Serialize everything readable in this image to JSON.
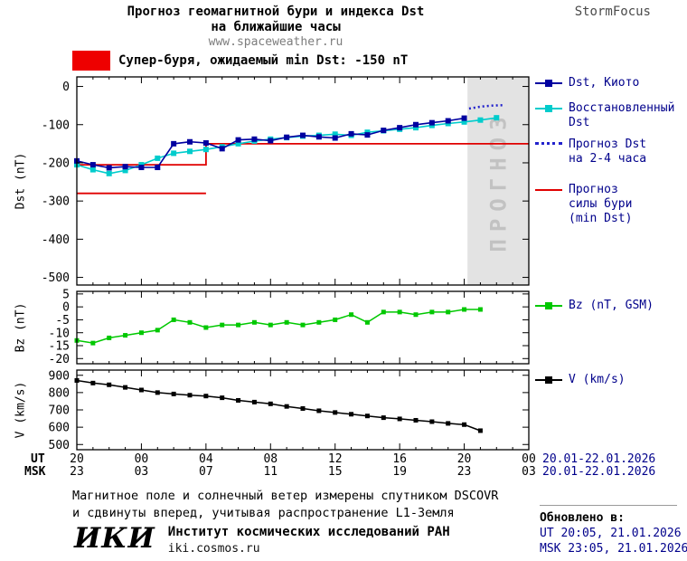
{
  "header": {
    "title_line1": "Прогноз геомагнитной бури и индекса Dst",
    "title_line2": "на ближайшие часы",
    "site": "www.spaceweather.ru",
    "brand": "StormFocus"
  },
  "alert": {
    "label": "Супер-буря, ожидаемый min Dst: -150 nT",
    "color": "#ee0000"
  },
  "legend": {
    "dst_kyoto": "Dst, Киото",
    "restored_l1": "Восстановленный",
    "restored_l2": "Dst",
    "forecast_l1": "Прогноз Dst",
    "forecast_l2": "на 2-4 часа",
    "storm_l1": "Прогноз",
    "storm_l2": "силы бури",
    "storm_l3": "(min Dst)",
    "bz": "Bz (nT, GSM)",
    "v": "V (km/s)"
  },
  "axes": {
    "ut_label": "UT",
    "msk_label": "MSK",
    "ut_ticks": [
      "20",
      "00",
      "04",
      "08",
      "12",
      "16",
      "20",
      "00"
    ],
    "msk_ticks": [
      "23",
      "03",
      "07",
      "11",
      "15",
      "19",
      "23",
      "03"
    ],
    "date_range_ut": "20.01-22.01.2026",
    "date_range_msk": "20.01-22.01.2026"
  },
  "footer": {
    "note_line1": "Магнитное поле и солнечный ветер измерены спутником DSCOVR",
    "note_line2": "и сдвинуты вперед, учитывая распространение L1-Земля",
    "updated_label": "Обновлено в:",
    "updated_ut": "UT  20:05, 21.01.2026",
    "updated_msk": "MSK 23:05, 21.01.2026",
    "logo": "ИКИ",
    "institute": "Институт космических исследований РАН",
    "iki_site": "iki.cosmos.ru"
  },
  "chart_data": [
    {
      "type": "line",
      "title": "Dst index and forecast",
      "ylabel": "Dst (nT)",
      "ylim": [
        -520,
        25
      ],
      "yticks": [
        0,
        -100,
        -200,
        -300,
        -400,
        -500
      ],
      "xlim": [
        0,
        28
      ],
      "xticks": [
        0,
        4,
        8,
        12,
        16,
        20,
        24,
        28
      ],
      "x_unit": "hours from 20:00 UT 20.01.2026",
      "forecast_band": [
        24.2,
        28
      ],
      "forecast_band_label": "ПРОГНОЗ",
      "series": [
        {
          "name": "Прогноз силы бури (min Dst)",
          "color": "#e00000",
          "width": 1.8,
          "x": [
            0,
            8
          ],
          "values": [
            -280,
            -280
          ]
        },
        {
          "name": "Прогноз силы бури (min Dst)",
          "color": "#e00000",
          "width": 1.8,
          "x": [
            0,
            8,
            8,
            28
          ],
          "values": [
            -205,
            -205,
            -150,
            -150
          ]
        },
        {
          "name": "Восстановленный Dst",
          "color": "#00cccc",
          "marker": true,
          "msize": 6,
          "width": 1.6,
          "x_start": 0,
          "x_step": 1,
          "values": [
            -205,
            -218,
            -228,
            -220,
            -205,
            -188,
            -175,
            -170,
            -165,
            -158,
            -150,
            -143,
            -138,
            -134,
            -130,
            -128,
            -125,
            -128,
            -120,
            -116,
            -112,
            -108,
            -102,
            -97,
            -93,
            -88,
            -82
          ]
        },
        {
          "name": "Dst, Киото",
          "color": "#0000a0",
          "marker": true,
          "msize": 6,
          "width": 1.6,
          "x_start": 0,
          "x_step": 1,
          "values": [
            -195,
            -205,
            -213,
            -210,
            -212,
            -212,
            -150,
            -145,
            -148,
            -163,
            -140,
            -138,
            -142,
            -133,
            -128,
            -132,
            -135,
            -124,
            -127,
            -115,
            -108,
            -100,
            -95,
            -90,
            -83
          ]
        },
        {
          "name": "Прогноз Dst на 2-4 часа",
          "color": "#2222cc",
          "width": 2.5,
          "dash": "2,3",
          "x": [
            24.3,
            25,
            25.7,
            26.5
          ],
          "values": [
            -58,
            -53,
            -50,
            -49
          ]
        }
      ]
    },
    {
      "type": "line",
      "title": "IMF Bz",
      "ylabel": "Bz (nT)",
      "ylim": [
        -22,
        6
      ],
      "yticks": [
        5,
        0,
        -5,
        -10,
        -15,
        -20
      ],
      "xlim": [
        0,
        28
      ],
      "xticks": [
        0,
        4,
        8,
        12,
        16,
        20,
        24,
        28
      ],
      "series": [
        {
          "name": "Bz (nT, GSM)",
          "color": "#00c800",
          "marker": true,
          "msize": 5,
          "width": 1.5,
          "x_start": 0,
          "x_step": 1,
          "values": [
            -13,
            -14,
            -12,
            -11,
            -10,
            -9,
            -5,
            -6,
            -8,
            -7,
            -7,
            -6,
            -7,
            -6,
            -7,
            -6,
            -5,
            -3,
            -6,
            -2,
            -2,
            -3,
            -2,
            -2,
            -1,
            -1
          ]
        }
      ]
    },
    {
      "type": "line",
      "title": "Solar wind speed",
      "ylabel": "V (km/s)",
      "ylim": [
        470,
        930
      ],
      "yticks": [
        900,
        800,
        700,
        600,
        500
      ],
      "xlim": [
        0,
        28
      ],
      "xticks": [
        0,
        4,
        8,
        12,
        16,
        20,
        24,
        28
      ],
      "series": [
        {
          "name": "V (km/s)",
          "color": "#000000",
          "marker": true,
          "msize": 5,
          "width": 1.5,
          "x_start": 0,
          "x_step": 1,
          "values": [
            870,
            855,
            845,
            830,
            815,
            800,
            792,
            785,
            780,
            770,
            755,
            745,
            735,
            720,
            708,
            695,
            685,
            675,
            665,
            655,
            648,
            640,
            632,
            622,
            615,
            580
          ]
        }
      ]
    }
  ]
}
